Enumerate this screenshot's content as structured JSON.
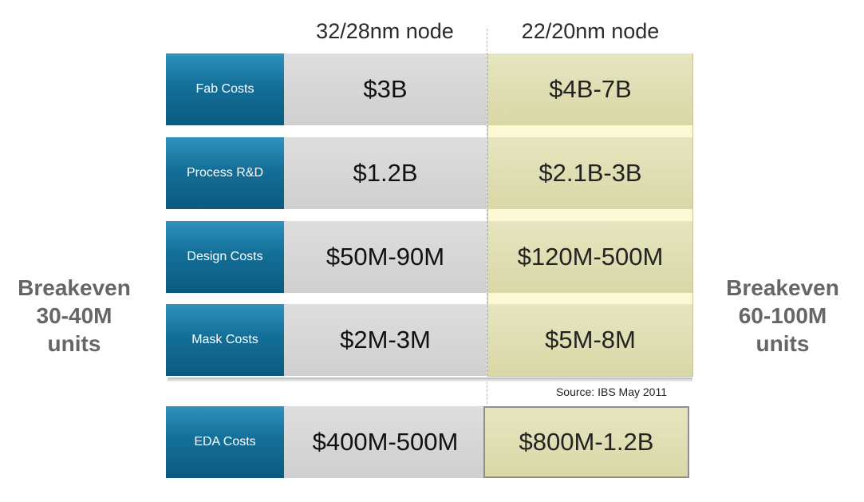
{
  "chart_data": {
    "type": "table",
    "columns": [
      "32/28nm node",
      "22/20nm node"
    ],
    "rows": [
      {
        "label": "Fab Costs",
        "values": [
          "$3B",
          "$4B-7B"
        ]
      },
      {
        "label": "Process R&D",
        "values": [
          "$1.2B",
          "$2.1B-3B"
        ]
      },
      {
        "label": "Design Costs",
        "values": [
          "$50M-90M",
          "$120M-500M"
        ]
      },
      {
        "label": "Mask Costs",
        "values": [
          "$2M-3M",
          "$5M-8M"
        ]
      },
      {
        "label": "EDA Costs",
        "values": [
          "$400M-500M",
          "$800M-1.2B"
        ]
      }
    ],
    "left_note": [
      "Breakeven",
      "30-40M",
      "units"
    ],
    "right_note": [
      "Breakeven",
      "60-100M",
      "units"
    ],
    "source": "Source: IBS May 2011"
  },
  "colors": {
    "label_blue": "#136f98",
    "old_node_gray": "#d4d4d4",
    "new_node_khaki": "#dedcb0"
  }
}
